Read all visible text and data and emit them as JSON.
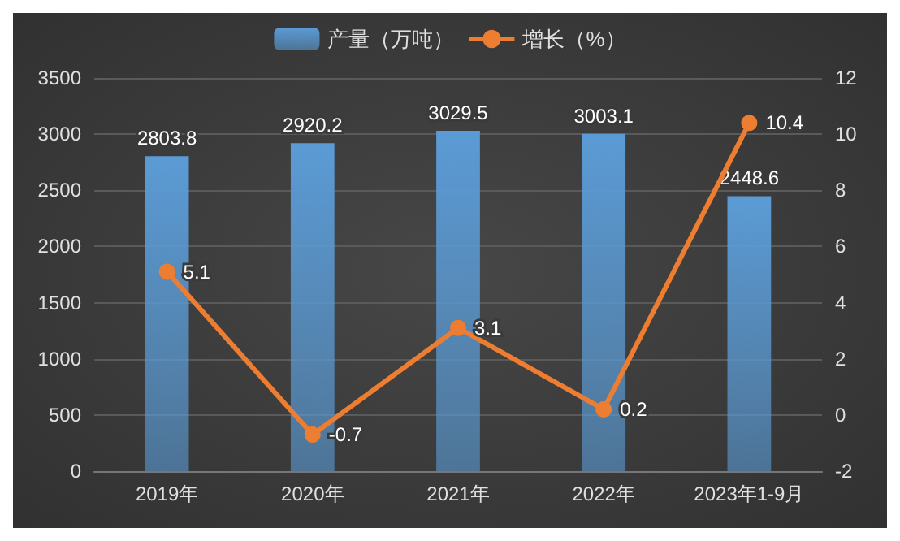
{
  "chart_data": {
    "type": "bar",
    "categories": [
      "2019年",
      "2020年",
      "2021年",
      "2022年",
      "2023年1-9月"
    ],
    "series": [
      {
        "name": "产量（万吨）",
        "color": "#5b9bd5",
        "values": [
          2803.8,
          2920.2,
          3029.5,
          3003.1,
          2448.6
        ]
      },
      {
        "name": "增长（%）",
        "type": "line",
        "axis": "y2",
        "color": "#ed7d31",
        "values": [
          5.1,
          -0.7,
          3.1,
          0.2,
          10.4
        ]
      }
    ],
    "ylim": [
      0,
      3500
    ],
    "yticks": [
      0,
      500,
      1000,
      1500,
      2000,
      2500,
      3000,
      3500
    ],
    "y2lim": [
      -2,
      12
    ],
    "y2ticks": [
      -2,
      0,
      2,
      4,
      6,
      8,
      10,
      12
    ],
    "grid": "y",
    "legend": "top",
    "marker": "circle",
    "line_style": "solid",
    "data_labels": true
  }
}
